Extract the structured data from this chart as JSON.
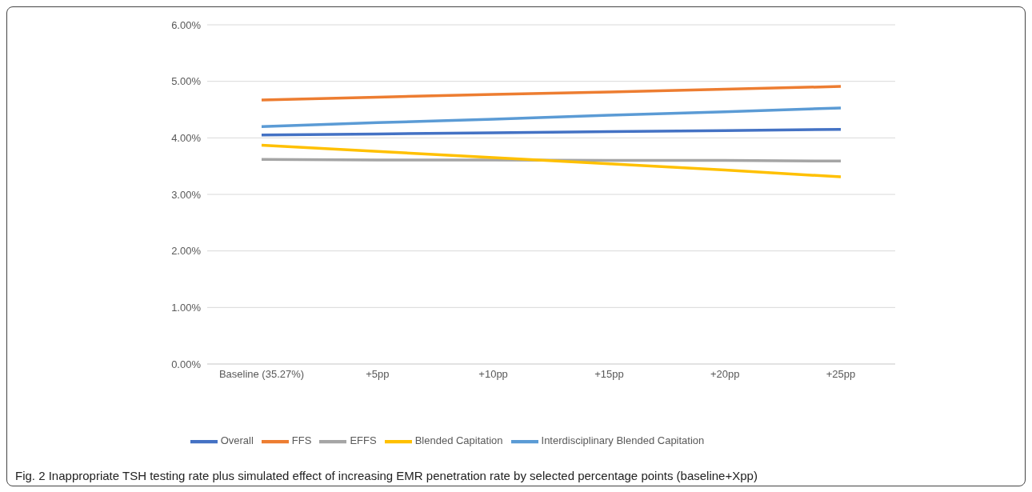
{
  "chart_data": {
    "type": "line",
    "categories": [
      "Baseline (35.27%)",
      "+5pp",
      "+10pp",
      "+15pp",
      "+20pp",
      "+25pp"
    ],
    "series": [
      {
        "name": "Overall",
        "color": "#4472c4",
        "values": [
          4.05,
          4.07,
          4.09,
          4.11,
          4.13,
          4.15
        ]
      },
      {
        "name": "FFS",
        "color": "#ed7d31",
        "values": [
          4.67,
          4.72,
          4.77,
          4.81,
          4.86,
          4.91
        ]
      },
      {
        "name": "EFFS",
        "color": "#a5a5a5",
        "values": [
          3.62,
          3.61,
          3.61,
          3.6,
          3.6,
          3.59
        ]
      },
      {
        "name": "Blended Capitation",
        "color": "#ffc000",
        "values": [
          3.87,
          3.76,
          3.65,
          3.54,
          3.43,
          3.31
        ]
      },
      {
        "name": "Interdisciplinary Blended Capitation",
        "color": "#5b9bd5",
        "values": [
          4.2,
          4.27,
          4.33,
          4.4,
          4.46,
          4.53
        ]
      }
    ],
    "ylim": [
      0,
      6
    ],
    "yticks": [
      {
        "value": 0,
        "label": "0.00%"
      },
      {
        "value": 1,
        "label": "1.00%"
      },
      {
        "value": 2,
        "label": "2.00%"
      },
      {
        "value": 3,
        "label": "3.00%"
      },
      {
        "value": 4,
        "label": "4.00%"
      },
      {
        "value": 5,
        "label": "5.00%"
      },
      {
        "value": 6,
        "label": "6.00%"
      }
    ],
    "grid": "y",
    "legend": "bottom",
    "marker": "none",
    "line_style": "solid",
    "annotations": [
      "Fig. 2 Inappropriate TSH testing rate plus simulated effect of increasing EMR penetration rate by selected percentage points (baseline+Xpp)"
    ]
  }
}
